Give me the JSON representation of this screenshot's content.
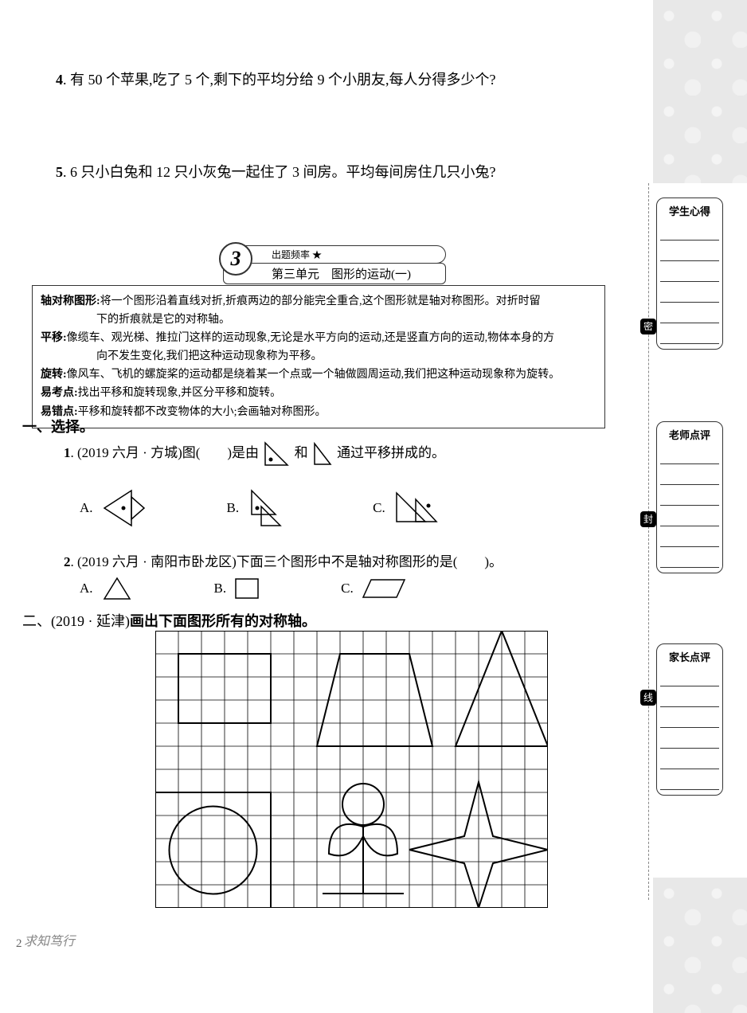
{
  "questions": {
    "q4": {
      "num": "4",
      "text": ". 有 50 个苹果,吃了 5 个,剩下的平均分给 9 个小朋友,每人分得多少个?"
    },
    "q5": {
      "num": "5",
      "text": ". 6 只小白兔和 12 只小灰兔一起住了 3 间房。平均每间房住几只小兔?"
    }
  },
  "unit": {
    "number": "3",
    "freq_label": "出题频率  ★",
    "title": "第三单元　图形的运动(一)"
  },
  "info": {
    "l1a": "轴对称图形:",
    "l1b": "将一个图形沿着直线对折,折痕两边的部分能完全重合,这个图形就是轴对称图形。对折时留",
    "l1c": "下的折痕就是它的对称轴。",
    "l2a": "平移:",
    "l2b": "像缆车、观光梯、推拉门这样的运动现象,无论是水平方向的运动,还是竖直方向的运动,物体本身的方",
    "l2c": "向不发生变化,我们把这种运动现象称为平移。",
    "l3a": "旋转:",
    "l3b": "像风车、飞机的螺旋桨的运动都是绕着某一个点或一个轴做圆周运动,我们把这种运动现象称为旋转。",
    "l4a": "易考点:",
    "l4b": "找出平移和旋转现象,并区分平移和旋转。",
    "l5a": "易错点:",
    "l5b": "平移和旋转都不改变物体的大小;会画轴对称图形。"
  },
  "section1": {
    "head": "一、选择。",
    "q1": {
      "num": "1",
      "src": ". (2019 六月 · 方城)图(　　)是由",
      "mid": "和",
      "end": "通过平移拼成的。",
      "A": "A.",
      "B": "B.",
      "C": "C."
    },
    "q2": {
      "num": "2",
      "src": ". (2019 六月 · 南阳市卧龙区)下面三个图形中不是轴对称图形的是(　　)。",
      "A": "A.",
      "B": "B.",
      "C": "C."
    }
  },
  "section2": {
    "head_pre": "二、(2019 · 延津)",
    "head_bold": "画出下面图形所有的对称轴。"
  },
  "side": {
    "nb1": "学生心得",
    "nb2": "老师点评",
    "nb3": "家长点评",
    "s1": "密",
    "s2": "封",
    "s3": "线"
  },
  "footer": "求知笃行",
  "colors": {
    "text": "#000000",
    "border": "#333333",
    "grid": "#000000",
    "bg": "#ffffff"
  },
  "grid": {
    "cols": 17,
    "rows": 12,
    "cell": 29
  }
}
